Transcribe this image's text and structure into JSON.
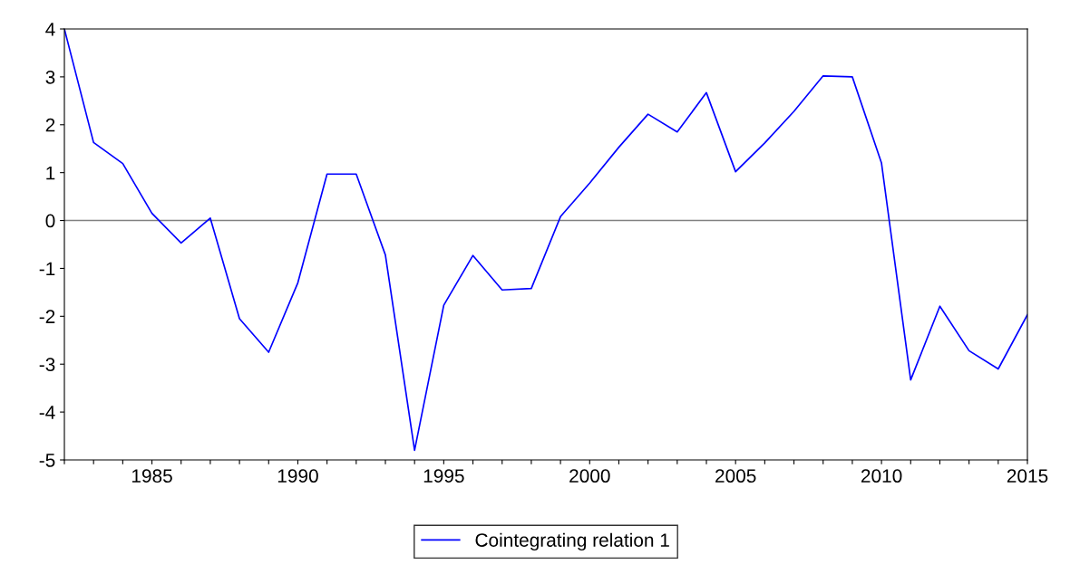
{
  "chart_data": {
    "type": "line",
    "x": [
      1982,
      1983,
      1984,
      1985,
      1986,
      1987,
      1988,
      1989,
      1990,
      1991,
      1992,
      1993,
      1994,
      1995,
      1996,
      1997,
      1998,
      1999,
      2000,
      2001,
      2002,
      2003,
      2004,
      2005,
      2006,
      2007,
      2008,
      2009,
      2010,
      2011,
      2012,
      2013,
      2014,
      2015
    ],
    "series": [
      {
        "name": "Cointegrating relation 1",
        "color": "#0000ff",
        "values": [
          4.0,
          1.63,
          1.19,
          0.15,
          -0.47,
          0.05,
          -2.05,
          -2.75,
          -1.3,
          0.97,
          0.97,
          -0.72,
          -4.8,
          -1.77,
          -0.73,
          -1.45,
          -1.42,
          0.08,
          0.78,
          1.53,
          2.22,
          1.85,
          2.67,
          1.02,
          1.62,
          2.28,
          3.02,
          3.0,
          1.2,
          -3.33,
          -1.79,
          -2.72,
          -3.1,
          -1.97
        ]
      }
    ],
    "xlim": [
      1982,
      2015
    ],
    "xticks": [
      {
        "value": 1982,
        "label": null
      },
      {
        "value": 1983,
        "label": null
      },
      {
        "value": 1984,
        "label": null
      },
      1985,
      {
        "value": 1986,
        "label": null
      },
      {
        "value": 1987,
        "label": null
      },
      {
        "value": 1988,
        "label": null
      },
      {
        "value": 1989,
        "label": null
      },
      1990,
      {
        "value": 1991,
        "label": null
      },
      {
        "value": 1992,
        "label": null
      },
      {
        "value": 1993,
        "label": null
      },
      {
        "value": 1994,
        "label": null
      },
      1995,
      {
        "value": 1996,
        "label": null
      },
      {
        "value": 1997,
        "label": null
      },
      {
        "value": 1998,
        "label": null
      },
      {
        "value": 1999,
        "label": null
      },
      2000,
      {
        "value": 2001,
        "label": null
      },
      {
        "value": 2002,
        "label": null
      },
      {
        "value": 2003,
        "label": null
      },
      {
        "value": 2004,
        "label": null
      },
      2005,
      {
        "value": 2006,
        "label": null
      },
      {
        "value": 2007,
        "label": null
      },
      {
        "value": 2008,
        "label": null
      },
      {
        "value": 2009,
        "label": null
      },
      2010,
      {
        "value": 2011,
        "label": null
      },
      {
        "value": 2012,
        "label": null
      },
      {
        "value": 2013,
        "label": null
      },
      {
        "value": 2014,
        "label": null
      },
      2015
    ],
    "ylim": [
      -5,
      4
    ],
    "yticks": [
      -5,
      -4,
      -3,
      -2,
      -1,
      0,
      1,
      2,
      3,
      4
    ],
    "ref_lines": [
      {
        "axis": "y",
        "value": 0,
        "color": "#808080"
      }
    ],
    "grid": false,
    "legend": "bottom",
    "marker": "none",
    "line_style": "solid"
  }
}
